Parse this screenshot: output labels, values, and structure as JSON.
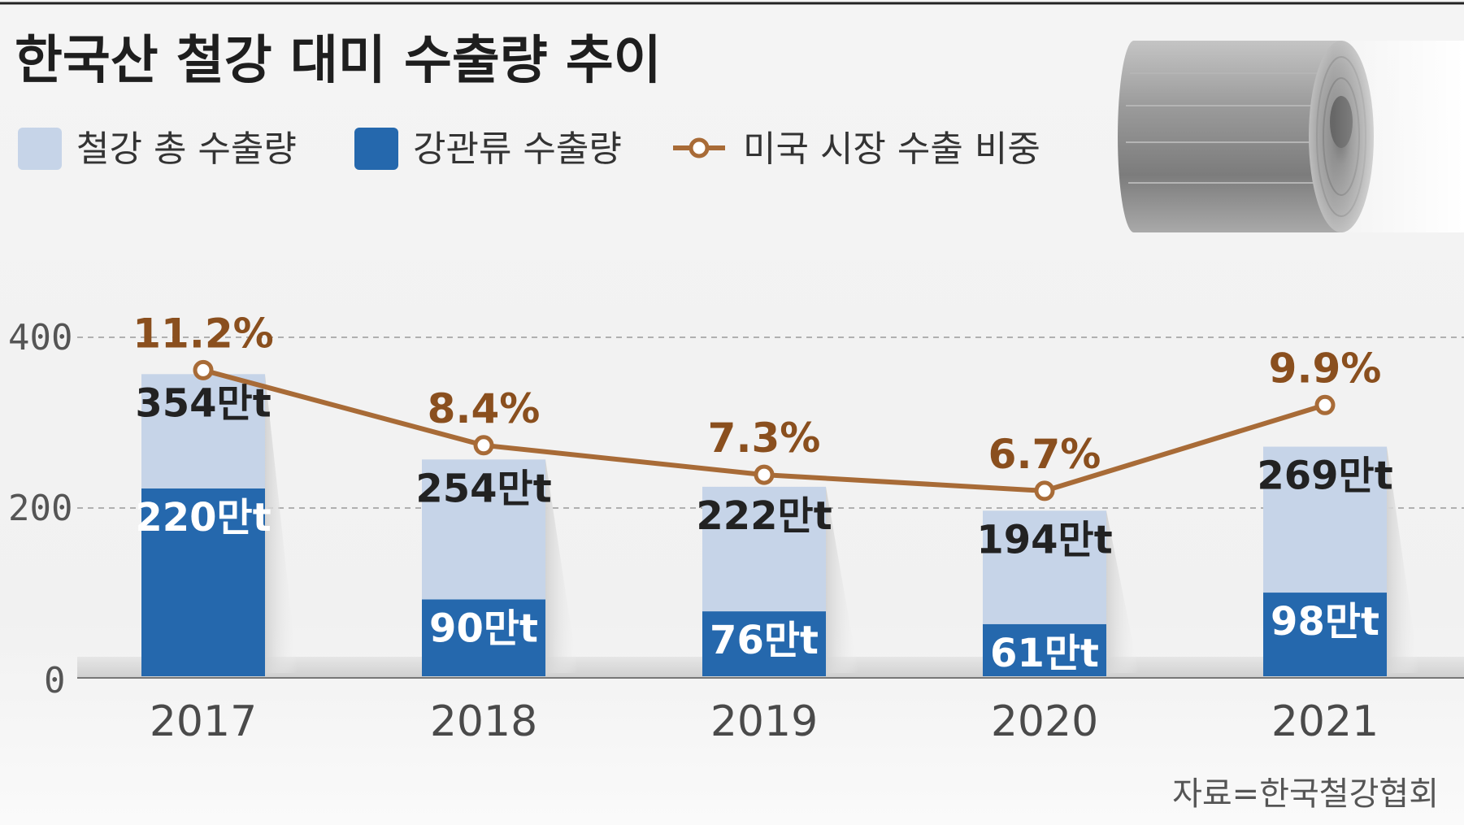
{
  "chart_data": {
    "type": "bar",
    "title": "한국산 철강 대미 수출량 추이",
    "categories": [
      "2017",
      "2018",
      "2019",
      "2020",
      "2021"
    ],
    "series": [
      {
        "name": "철강 총 수출량",
        "values": [
          354,
          254,
          222,
          194,
          269
        ],
        "labels": [
          "354만t",
          "254만t",
          "222만t",
          "194만t",
          "269만t"
        ],
        "color": "#c6d4e8"
      },
      {
        "name": "강관류 수출량",
        "values": [
          220,
          90,
          76,
          61,
          98
        ],
        "labels": [
          "220만t",
          "90만t",
          "76만t",
          "61만t",
          "98만t"
        ],
        "color": "#2568ad"
      },
      {
        "name": "미국 시장 수출 비중",
        "type": "line",
        "values": [
          11.2,
          8.4,
          7.3,
          6.7,
          9.9
        ],
        "labels": [
          "11.2%",
          "8.4%",
          "7.3%",
          "6.7%",
          "9.9%"
        ],
        "color": "#a86b37"
      }
    ],
    "y_ticks": [
      "0",
      "200",
      "400"
    ],
    "ylim": [
      0,
      440
    ],
    "grid": true,
    "legend_position": "top-left",
    "source": "자료=한국철강협회"
  }
}
